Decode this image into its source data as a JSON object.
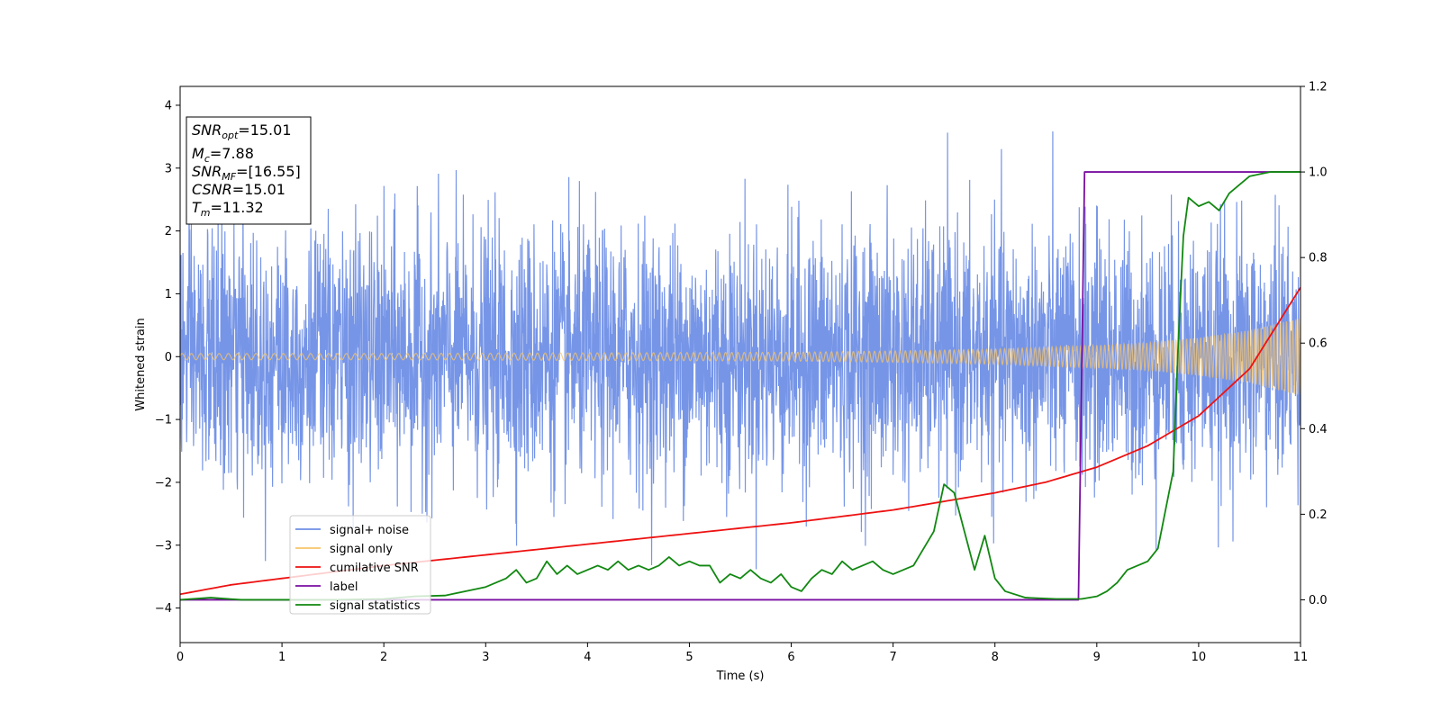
{
  "chart_data": {
    "type": "line",
    "xlabel": "Time (s)",
    "ylabel": "Whitened strain",
    "xlim": [
      0,
      11
    ],
    "ylim_left": [
      -4.55,
      4.3
    ],
    "ylim_right": [
      -0.1,
      1.2
    ],
    "xticks": [
      0,
      1,
      2,
      3,
      4,
      5,
      6,
      7,
      8,
      9,
      10,
      11
    ],
    "yticks_left": [
      -4,
      -3,
      -2,
      -1,
      0,
      1,
      2,
      3,
      4
    ],
    "yticks_right": [
      0.0,
      0.2,
      0.4,
      0.6,
      0.8,
      1.0,
      1.2
    ],
    "legend": {
      "placement": "lower-left",
      "entries": [
        {
          "name": "signal+ noise",
          "color": "#6f8fe6"
        },
        {
          "name": "signal only",
          "color": "#f7c46a"
        },
        {
          "name": "cumilative SNR",
          "color": "#ee1111"
        },
        {
          "name": "label",
          "color": "#7a0ea0"
        },
        {
          "name": "signal statistics",
          "color": "#118811"
        }
      ]
    },
    "annotation": [
      {
        "base": "SNR",
        "sub": "opt",
        "rest": "=15.01"
      },
      {
        "base": "M",
        "sub": "c",
        "rest": "=7.88"
      },
      {
        "base": "SNR",
        "sub": "MF",
        "rest": "=[16.55]"
      },
      {
        "base": "CSNR",
        "sub": "",
        "rest": "=15.01"
      },
      {
        "base": "T",
        "sub": "m",
        "rest": "=11.32"
      }
    ],
    "series": [
      {
        "name": "signal+ noise",
        "axis": "left",
        "color": "#6f8fe6",
        "noise_level": 1.0,
        "approx_range": [
          -4.2,
          3.9
        ]
      },
      {
        "name": "signal only",
        "axis": "left",
        "color": "#f7c46a",
        "envelope": {
          "x": [
            0,
            2,
            4,
            6,
            7,
            8,
            9,
            9.5,
            10,
            10.5,
            11
          ],
          "amp": [
            0.05,
            0.05,
            0.06,
            0.07,
            0.09,
            0.12,
            0.18,
            0.22,
            0.3,
            0.42,
            0.62
          ]
        }
      },
      {
        "name": "cumilative SNR",
        "axis": "right",
        "color": "#ee1111",
        "x": [
          0,
          0.5,
          1,
          2,
          3,
          4,
          5,
          6,
          7,
          8,
          8.5,
          9,
          9.5,
          10,
          10.5,
          11
        ],
        "y": [
          0.013,
          0.035,
          0.05,
          0.08,
          0.105,
          0.13,
          0.155,
          0.18,
          0.21,
          0.25,
          0.275,
          0.31,
          0.36,
          0.43,
          0.54,
          0.73
        ]
      },
      {
        "name": "label",
        "axis": "right",
        "color": "#7a0ea0",
        "x": [
          0,
          8.82,
          8.88,
          11
        ],
        "y": [
          0.0,
          0.0,
          1.0,
          1.0
        ]
      },
      {
        "name": "signal statistics",
        "axis": "right",
        "color": "#118811",
        "x": [
          0,
          0.3,
          0.6,
          1,
          1.5,
          2,
          2.3,
          2.6,
          2.8,
          3.0,
          3.2,
          3.3,
          3.4,
          3.5,
          3.6,
          3.7,
          3.8,
          3.9,
          4.0,
          4.1,
          4.2,
          4.3,
          4.4,
          4.5,
          4.6,
          4.7,
          4.8,
          4.9,
          5.0,
          5.1,
          5.2,
          5.3,
          5.4,
          5.5,
          5.6,
          5.7,
          5.8,
          5.9,
          6.0,
          6.1,
          6.2,
          6.3,
          6.4,
          6.5,
          6.6,
          6.7,
          6.8,
          6.9,
          7.0,
          7.1,
          7.2,
          7.3,
          7.4,
          7.5,
          7.6,
          7.7,
          7.8,
          7.9,
          8.0,
          8.1,
          8.3,
          8.6,
          8.85,
          9.0,
          9.1,
          9.2,
          9.3,
          9.4,
          9.5,
          9.6,
          9.65,
          9.7,
          9.75,
          9.8,
          9.85,
          9.9,
          10.0,
          10.1,
          10.2,
          10.3,
          10.4,
          10.5,
          10.7,
          11
        ],
        "y": [
          0.0,
          0.005,
          0.0,
          0.0,
          0.0,
          0.002,
          0.008,
          0.01,
          0.02,
          0.03,
          0.05,
          0.07,
          0.04,
          0.05,
          0.09,
          0.06,
          0.08,
          0.06,
          0.07,
          0.08,
          0.07,
          0.09,
          0.07,
          0.08,
          0.07,
          0.08,
          0.1,
          0.08,
          0.09,
          0.08,
          0.08,
          0.04,
          0.06,
          0.05,
          0.07,
          0.05,
          0.04,
          0.06,
          0.03,
          0.02,
          0.05,
          0.07,
          0.06,
          0.09,
          0.07,
          0.08,
          0.09,
          0.07,
          0.06,
          0.07,
          0.08,
          0.12,
          0.16,
          0.27,
          0.25,
          0.16,
          0.07,
          0.15,
          0.05,
          0.02,
          0.005,
          0.002,
          0.002,
          0.008,
          0.02,
          0.04,
          0.07,
          0.08,
          0.09,
          0.12,
          0.18,
          0.24,
          0.3,
          0.6,
          0.85,
          0.94,
          0.92,
          0.93,
          0.91,
          0.95,
          0.97,
          0.99,
          1.0,
          1.0
        ]
      }
    ]
  }
}
